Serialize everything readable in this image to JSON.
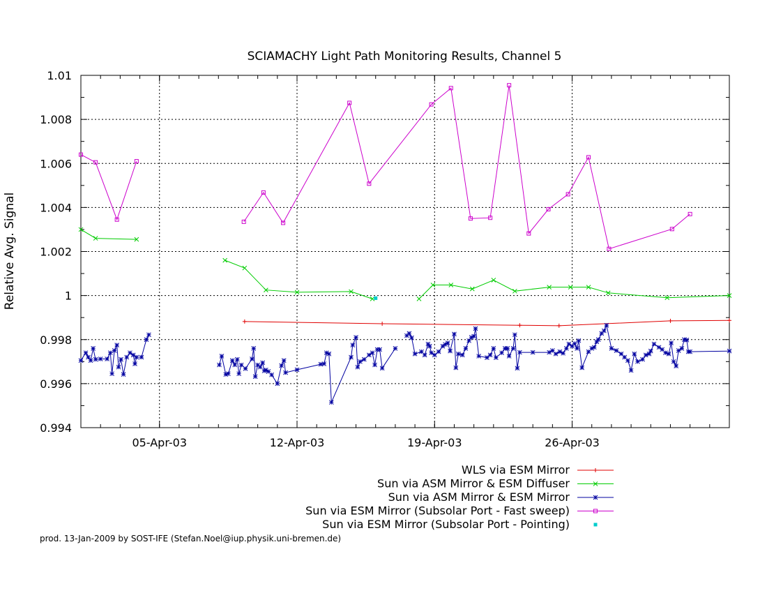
{
  "chart_data": {
    "type": "line",
    "title": "SCIAMACHY Light Path Monitoring Results, Channel 5",
    "xlabel": "",
    "ylabel": "Relative Avg. Signal",
    "xlim": [
      "2003-04-01T00:00",
      "2003-05-04T00:00"
    ],
    "ylim": [
      0.994,
      1.01
    ],
    "yticks": [
      {
        "v": 0.994,
        "label": "0.994"
      },
      {
        "v": 0.996,
        "label": "0.996"
      },
      {
        "v": 0.998,
        "label": "0.998"
      },
      {
        "v": 1.0,
        "label": "1"
      },
      {
        "v": 1.002,
        "label": "1.002"
      },
      {
        "v": 1.004,
        "label": "1.004"
      },
      {
        "v": 1.006,
        "label": "1.006"
      },
      {
        "v": 1.008,
        "label": "1.008"
      },
      {
        "v": 1.01,
        "label": "1.01"
      }
    ],
    "xticks": [
      {
        "v": "2003-04-05T00:00",
        "label": "05-Apr-03"
      },
      {
        "v": "2003-04-12T00:00",
        "label": "12-Apr-03"
      },
      {
        "v": "2003-04-19T00:00",
        "label": "19-Apr-03"
      },
      {
        "v": "2003-04-26T00:00",
        "label": "26-Apr-03"
      }
    ],
    "grid": true,
    "legend_position": "bottom-right",
    "series": [
      {
        "name": "WLS via ESM Mirror",
        "color": "#e00000",
        "marker": "plus",
        "values": [
          [
            "2003-04-09T08:00",
            0.99882
          ],
          [
            "2003-04-16T08:00",
            0.99872
          ],
          [
            "2003-04-23T08:00",
            0.99865
          ],
          [
            "2003-04-25T08:00",
            0.99863
          ],
          [
            "2003-05-01T00:00",
            0.99885
          ],
          [
            "2003-05-04T00:00",
            0.99887
          ]
        ]
      },
      {
        "name": "Sun via ASM Mirror & ESM Diffuser",
        "color": "#00cc00",
        "marker": "cross",
        "segments": [
          [
            [
              "2003-04-01T00:00",
              1.003
            ],
            [
              "2003-04-01T18:00",
              1.0026
            ],
            [
              "2003-04-03T20:00",
              1.00255
            ]
          ],
          [
            [
              "2003-04-08T08:00",
              1.0016
            ],
            [
              "2003-04-09T08:00",
              1.00125
            ],
            [
              "2003-04-10T10:00",
              1.00025
            ],
            [
              "2003-04-12T00:00",
              1.00015
            ],
            [
              "2003-04-14T18:00",
              1.00018
            ],
            [
              "2003-04-15T20:00",
              0.99985
            ]
          ],
          [
            [
              "2003-04-18T05:00",
              0.99985
            ],
            [
              "2003-04-18T22:00",
              1.00048
            ],
            [
              "2003-04-19T20:00",
              1.00048
            ],
            [
              "2003-04-20T22:00",
              1.0003
            ],
            [
              "2003-04-22T00:00",
              1.0007
            ],
            [
              "2003-04-23T02:00",
              1.0002
            ],
            [
              "2003-04-24T20:00",
              1.00038
            ],
            [
              "2003-04-25T22:00",
              1.00038
            ],
            [
              "2003-04-26T20:00",
              1.00038
            ],
            [
              "2003-04-27T20:00",
              1.00012
            ],
            [
              "2003-04-30T20:00",
              0.9999
            ],
            [
              "2003-05-04T00:00",
              1.0
            ]
          ]
        ]
      },
      {
        "name": "Sun via ASM Mirror & ESM Mirror",
        "color": "#0000a0",
        "marker": "star",
        "segments": [
          [
            [
              "2003-04-01T00:00",
              0.99705
            ],
            [
              "2003-04-01T06:00",
              0.9974
            ],
            [
              "2003-04-01T09:00",
              0.9972
            ],
            [
              "2003-04-01T12:00",
              0.99705
            ],
            [
              "2003-04-01T15:00",
              0.9976
            ],
            [
              "2003-04-01T18:00",
              0.9971
            ],
            [
              "2003-04-02T00:00",
              0.99712
            ],
            [
              "2003-04-02T08:00",
              0.99712
            ],
            [
              "2003-04-02T12:00",
              0.9974
            ],
            [
              "2003-04-02T14:00",
              0.99645
            ],
            [
              "2003-04-02T17:00",
              0.9975
            ],
            [
              "2003-04-02T20:00",
              0.99775
            ],
            [
              "2003-04-02T22:00",
              0.99675
            ],
            [
              "2003-04-03T01:00",
              0.9971
            ],
            [
              "2003-04-03T04:00",
              0.99642
            ],
            [
              "2003-04-03T08:00",
              0.9972
            ],
            [
              "2003-04-03T12:00",
              0.9974
            ],
            [
              "2003-04-03T16:00",
              0.9973
            ],
            [
              "2003-04-03T18:00",
              0.9969
            ],
            [
              "2003-04-03T20:00",
              0.9972
            ],
            [
              "2003-04-04T02:00",
              0.9972
            ],
            [
              "2003-04-04T08:00",
              0.998
            ],
            [
              "2003-04-04T11:00",
              0.99822
            ]
          ],
          [
            [
              "2003-04-08T01:00",
              0.99685
            ],
            [
              "2003-04-08T04:00",
              0.99725
            ],
            [
              "2003-04-08T09:00",
              0.99642
            ],
            [
              "2003-04-08T12:00",
              0.99645
            ],
            [
              "2003-04-08T17:00",
              0.99705
            ],
            [
              "2003-04-08T20:00",
              0.99685
            ],
            [
              "2003-04-08T23:00",
              0.9971
            ],
            [
              "2003-04-09T01:00",
              0.99645
            ],
            [
              "2003-04-09T04:00",
              0.99685
            ],
            [
              "2003-04-09T09:00",
              0.99668
            ],
            [
              "2003-04-09T17:00",
              0.99712
            ],
            [
              "2003-04-09T19:00",
              0.9976
            ],
            [
              "2003-04-09T21:00",
              0.99632
            ],
            [
              "2003-04-10T00:00",
              0.99685
            ],
            [
              "2003-04-10T03:00",
              0.99675
            ],
            [
              "2003-04-10T06:00",
              0.99695
            ],
            [
              "2003-04-10T08:00",
              0.99658
            ],
            [
              "2003-04-10T10:00",
              0.99662
            ],
            [
              "2003-04-10T13:00",
              0.99655
            ],
            [
              "2003-04-10T17:00",
              0.9964
            ],
            [
              "2003-04-11T00:00",
              0.996
            ],
            [
              "2003-04-11T05:00",
              0.99682
            ],
            [
              "2003-04-11T08:00",
              0.99705
            ],
            [
              "2003-04-11T10:00",
              0.9965
            ],
            [
              "2003-04-12T00:00",
              0.99663
            ],
            [
              "2003-04-13T05:00",
              0.99688
            ],
            [
              "2003-04-13T09:00",
              0.9969
            ],
            [
              "2003-04-13T12:00",
              0.9974
            ],
            [
              "2003-04-13T15:00",
              0.99735
            ],
            [
              "2003-04-13T18:00",
              0.99515
            ],
            [
              "2003-04-14T18:00",
              0.9972
            ],
            [
              "2003-04-14T20:00",
              0.99775
            ],
            [
              "2003-04-15T00:00",
              0.9981
            ],
            [
              "2003-04-15T02:00",
              0.99675
            ],
            [
              "2003-04-15T05:00",
              0.997
            ],
            [
              "2003-04-15T10:00",
              0.9971
            ],
            [
              "2003-04-15T16:00",
              0.9973
            ],
            [
              "2003-04-15T20:00",
              0.9974
            ],
            [
              "2003-04-15T23:00",
              0.99685
            ],
            [
              "2003-04-16T02:00",
              0.99755
            ],
            [
              "2003-04-16T05:00",
              0.99755
            ],
            [
              "2003-04-16T08:00",
              0.9967
            ],
            [
              "2003-04-17T00:00",
              0.9976
            ]
          ],
          [
            [
              "2003-04-17T14:00",
              0.99818
            ],
            [
              "2003-04-17T17:00",
              0.99828
            ],
            [
              "2003-04-17T20:00",
              0.99808
            ],
            [
              "2003-04-18T00:00",
              0.99735
            ],
            [
              "2003-04-18T08:00",
              0.99745
            ],
            [
              "2003-04-18T12:00",
              0.9973
            ],
            [
              "2003-04-18T16:00",
              0.9978
            ],
            [
              "2003-04-18T18:00",
              0.9977
            ],
            [
              "2003-04-18T20:00",
              0.9974
            ],
            [
              "2003-04-19T00:00",
              0.9973
            ],
            [
              "2003-04-19T05:00",
              0.99745
            ],
            [
              "2003-04-19T10:00",
              0.9977
            ],
            [
              "2003-04-19T13:00",
              0.99778
            ],
            [
              "2003-04-19T16:00",
              0.99785
            ],
            [
              "2003-04-19T19:00",
              0.99748
            ],
            [
              "2003-04-20T00:00",
              0.99825
            ],
            [
              "2003-04-20T02:00",
              0.99672
            ],
            [
              "2003-04-20T05:00",
              0.99735
            ],
            [
              "2003-04-20T10:00",
              0.9973
            ],
            [
              "2003-04-20T14:00",
              0.9976
            ],
            [
              "2003-04-20T18:00",
              0.99795
            ],
            [
              "2003-04-20T21:00",
              0.9981
            ],
            [
              "2003-04-21T00:00",
              0.99815
            ],
            [
              "2003-04-21T02:00",
              0.9985
            ],
            [
              "2003-04-21T06:00",
              0.99725
            ],
            [
              "2003-04-21T16:00",
              0.99718
            ],
            [
              "2003-04-21T20:00",
              0.9973
            ],
            [
              "2003-04-22T00:00",
              0.9976
            ],
            [
              "2003-04-22T03:00",
              0.99718
            ],
            [
              "2003-04-22T10:00",
              0.9974
            ],
            [
              "2003-04-22T14:00",
              0.9976
            ],
            [
              "2003-04-22T17:00",
              0.9976
            ],
            [
              "2003-04-22T19:00",
              0.99725
            ],
            [
              "2003-04-23T00:00",
              0.9976
            ],
            [
              "2003-04-23T02:00",
              0.99822
            ],
            [
              "2003-04-23T05:00",
              0.9967
            ],
            [
              "2003-04-23T08:00",
              0.99742
            ],
            [
              "2003-04-24T00:00",
              0.99742
            ],
            [
              "2003-04-24T20:00",
              0.99742
            ],
            [
              "2003-04-25T00:00",
              0.9975
            ],
            [
              "2003-04-25T04:00",
              0.99735
            ],
            [
              "2003-04-25T09:00",
              0.99745
            ],
            [
              "2003-04-25T13:00",
              0.99738
            ],
            [
              "2003-04-25T17:00",
              0.9976
            ],
            [
              "2003-04-25T20:00",
              0.9978
            ],
            [
              "2003-04-26T00:00",
              0.9977
            ],
            [
              "2003-04-26T03:00",
              0.99782
            ],
            [
              "2003-04-26T06:00",
              0.9976
            ],
            [
              "2003-04-26T08:00",
              0.99795
            ],
            [
              "2003-04-26T12:00",
              0.99672
            ],
            [
              "2003-04-26T20:00",
              0.99745
            ],
            [
              "2003-04-27T00:00",
              0.9976
            ],
            [
              "2003-04-27T03:00",
              0.99765
            ],
            [
              "2003-04-27T06:00",
              0.9979
            ],
            [
              "2003-04-27T08:00",
              0.998
            ],
            [
              "2003-04-27T12:00",
              0.99828
            ],
            [
              "2003-04-27T15:00",
              0.9984
            ],
            [
              "2003-04-27T18:00",
              0.99865
            ],
            [
              "2003-04-28T00:00",
              0.9976
            ],
            [
              "2003-04-28T06:00",
              0.9975
            ],
            [
              "2003-04-28T12:00",
              0.99735
            ],
            [
              "2003-04-28T16:00",
              0.9972
            ],
            [
              "2003-04-28T20:00",
              0.99705
            ],
            [
              "2003-04-29T00:00",
              0.9966
            ],
            [
              "2003-04-29T04:00",
              0.99735
            ],
            [
              "2003-04-29T08:00",
              0.997
            ],
            [
              "2003-04-29T14:00",
              0.9971
            ],
            [
              "2003-04-29T18:00",
              0.9973
            ],
            [
              "2003-04-29T22:00",
              0.99735
            ],
            [
              "2003-04-30T00:00",
              0.99748
            ],
            [
              "2003-04-30T04:00",
              0.9978
            ],
            [
              "2003-04-30T10:00",
              0.99765
            ],
            [
              "2003-04-30T14:00",
              0.99755
            ],
            [
              "2003-04-30T18:00",
              0.9974
            ],
            [
              "2003-04-30T22:00",
              0.99735
            ],
            [
              "2003-05-01T01:00",
              0.99785
            ],
            [
              "2003-05-01T04:00",
              0.997
            ],
            [
              "2003-05-01T07:00",
              0.9968
            ],
            [
              "2003-05-01T10:00",
              0.9975
            ],
            [
              "2003-05-01T14:00",
              0.9976
            ],
            [
              "2003-05-01T17:00",
              0.998
            ],
            [
              "2003-05-01T20:00",
              0.99798
            ],
            [
              "2003-05-01T22:00",
              0.99745
            ],
            [
              "2003-05-02T00:00",
              0.99745
            ],
            [
              "2003-05-04T00:00",
              0.99748
            ]
          ]
        ]
      },
      {
        "name": "Sun via ESM Mirror (Subsolar Port - Fast sweep)",
        "color": "#cc00cc",
        "marker": "square",
        "segments": [
          [
            [
              "2003-04-01T00:00",
              1.0064
            ],
            [
              "2003-04-01T18:00",
              1.00605
            ],
            [
              "2003-04-02T20:00",
              1.00345
            ],
            [
              "2003-04-03T20:00",
              1.0061
            ]
          ],
          [
            [
              "2003-04-09T07:00",
              1.00335
            ],
            [
              "2003-04-10T07:00",
              1.00468
            ],
            [
              "2003-04-11T07:00",
              1.0033
            ],
            [
              "2003-04-14T16:00",
              1.00875
            ],
            [
              "2003-04-15T16:00",
              1.00508
            ],
            [
              "2003-04-18T20:00",
              1.00868
            ],
            [
              "2003-04-19T20:00",
              1.00942
            ],
            [
              "2003-04-20T20:00",
              1.0035
            ],
            [
              "2003-04-21T20:00",
              1.00353
            ],
            [
              "2003-04-22T19:00",
              1.00955
            ],
            [
              "2003-04-23T19:00",
              1.00282
            ],
            [
              "2003-04-24T19:00",
              1.00392
            ],
            [
              "2003-04-25T19:00",
              1.0046
            ],
            [
              "2003-04-26T20:00",
              1.00628
            ],
            [
              "2003-04-27T21:00",
              1.00212
            ],
            [
              "2003-05-01T02:00",
              1.00302
            ],
            [
              "2003-05-02T00:00",
              1.0037
            ]
          ]
        ]
      },
      {
        "name": "Sun via ESM Mirror (Subsolar Port - Pointing)",
        "color": "#00cccc",
        "marker": "dot",
        "values": [
          [
            "2003-04-16T00:00",
            0.99988
          ]
        ]
      }
    ]
  },
  "footer": {
    "credit": "prod. 13-Jan-2009 by SOST-IFE (Stefan.Noel@iup.physik.uni-bremen.de)"
  }
}
